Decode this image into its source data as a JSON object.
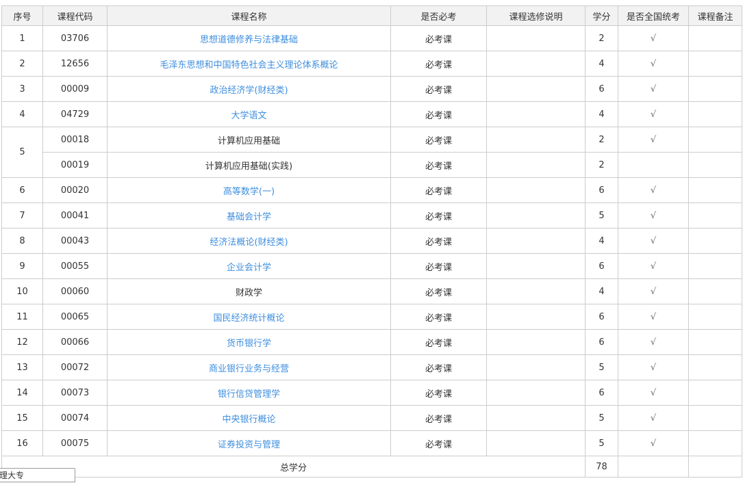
{
  "table": {
    "columns": [
      {
        "key": "seq",
        "label": "序号"
      },
      {
        "key": "code",
        "label": "课程代码"
      },
      {
        "key": "name",
        "label": "课程名称"
      },
      {
        "key": "required",
        "label": "是否必考"
      },
      {
        "key": "elective_note",
        "label": "课程选修说明"
      },
      {
        "key": "credits",
        "label": "学分"
      },
      {
        "key": "national_exam",
        "label": "是否全国统考"
      },
      {
        "key": "remark",
        "label": "课程备注"
      }
    ],
    "rows": [
      {
        "seq": "1",
        "code": "03706",
        "name": "思想道德修养与法律基础",
        "link": true,
        "required": "必考课",
        "elective_note": "",
        "credits": "2",
        "national_exam": "√",
        "remark": ""
      },
      {
        "seq": "2",
        "code": "12656",
        "name": "毛泽东思想和中国特色社会主义理论体系概论",
        "link": true,
        "required": "必考课",
        "elective_note": "",
        "credits": "4",
        "national_exam": "√",
        "remark": ""
      },
      {
        "seq": "3",
        "code": "00009",
        "name": "政治经济学(财经类)",
        "link": true,
        "required": "必考课",
        "elective_note": "",
        "credits": "6",
        "national_exam": "√",
        "remark": ""
      },
      {
        "seq": "4",
        "code": "04729",
        "name": "大学语文",
        "link": true,
        "required": "必考课",
        "elective_note": "",
        "credits": "4",
        "national_exam": "√",
        "remark": ""
      },
      {
        "seq": "5",
        "seq_rowspan": 2,
        "code": "00018",
        "name": "计算机应用基础",
        "link": false,
        "required": "必考课",
        "elective_note": "",
        "credits": "2",
        "national_exam": "√",
        "remark": ""
      },
      {
        "seq": null,
        "code": "00019",
        "name": "计算机应用基础(实践)",
        "link": false,
        "required": "必考课",
        "elective_note": "",
        "credits": "2",
        "national_exam": "",
        "remark": ""
      },
      {
        "seq": "6",
        "code": "00020",
        "name": "高等数学(一)",
        "link": true,
        "required": "必考课",
        "elective_note": "",
        "credits": "6",
        "national_exam": "√",
        "remark": ""
      },
      {
        "seq": "7",
        "code": "00041",
        "name": "基础会计学",
        "link": true,
        "required": "必考课",
        "elective_note": "",
        "credits": "5",
        "national_exam": "√",
        "remark": ""
      },
      {
        "seq": "8",
        "code": "00043",
        "name": "经济法概论(财经类)",
        "link": true,
        "required": "必考课",
        "elective_note": "",
        "credits": "4",
        "national_exam": "√",
        "remark": ""
      },
      {
        "seq": "9",
        "code": "00055",
        "name": "企业会计学",
        "link": true,
        "required": "必考课",
        "elective_note": "",
        "credits": "6",
        "national_exam": "√",
        "remark": ""
      },
      {
        "seq": "10",
        "code": "00060",
        "name": "财政学",
        "link": false,
        "required": "必考课",
        "elective_note": "",
        "credits": "4",
        "national_exam": "√",
        "remark": ""
      },
      {
        "seq": "11",
        "code": "00065",
        "name": "国民经济统计概论",
        "link": true,
        "required": "必考课",
        "elective_note": "",
        "credits": "6",
        "national_exam": "√",
        "remark": ""
      },
      {
        "seq": "12",
        "code": "00066",
        "name": "货币银行学",
        "link": true,
        "required": "必考课",
        "elective_note": "",
        "credits": "6",
        "national_exam": "√",
        "remark": ""
      },
      {
        "seq": "13",
        "code": "00072",
        "name": "商业银行业务与经营",
        "link": true,
        "required": "必考课",
        "elective_note": "",
        "credits": "5",
        "national_exam": "√",
        "remark": ""
      },
      {
        "seq": "14",
        "code": "00073",
        "name": "银行信贷管理学",
        "link": true,
        "required": "必考课",
        "elective_note": "",
        "credits": "6",
        "national_exam": "√",
        "remark": ""
      },
      {
        "seq": "15",
        "code": "00074",
        "name": "中央银行概论",
        "link": true,
        "required": "必考课",
        "elective_note": "",
        "credits": "5",
        "national_exam": "√",
        "remark": ""
      },
      {
        "seq": "16",
        "code": "00075",
        "name": "证券投资与管理",
        "link": true,
        "required": "必考课",
        "elective_note": "",
        "credits": "5",
        "national_exam": "√",
        "remark": ""
      }
    ],
    "footer": {
      "label": "总学分",
      "credits": "78",
      "national_exam": "",
      "remark": ""
    }
  },
  "status_tooltip": {
    "text": "理大专"
  },
  "colors": {
    "link_blue": "#3e8ede",
    "header_background": "#f2f2f2",
    "border_gray": "#cccccc",
    "text": "#333333"
  }
}
